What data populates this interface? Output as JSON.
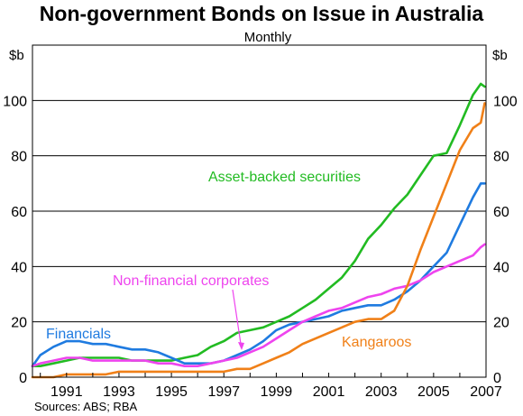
{
  "chart_data": {
    "type": "line",
    "title": "Non-government Bonds on Issue in Australia",
    "subtitle": "Monthly",
    "unit_left": "$b",
    "unit_right": "$b",
    "source": "Sources: ABS; RBA",
    "xlim": [
      1989.7,
      2007.0
    ],
    "ylim": [
      0,
      120
    ],
    "yticks": [
      0,
      20,
      40,
      60,
      80,
      100
    ],
    "xticks": [
      1991,
      1993,
      1995,
      1997,
      1999,
      2001,
      2003,
      2005,
      2007
    ],
    "grid": "horizontal",
    "series": [
      {
        "name": "Asset-backed securities",
        "color": "#22bb22",
        "x": [
          1989.7,
          1990.0,
          1990.5,
          1991.0,
          1991.5,
          1992.0,
          1992.5,
          1993.0,
          1993.5,
          1994.0,
          1994.5,
          1995.0,
          1995.5,
          1996.0,
          1996.5,
          1997.0,
          1997.5,
          1998.0,
          1998.5,
          1999.0,
          1999.5,
          2000.0,
          2000.5,
          2001.0,
          2001.5,
          2002.0,
          2002.5,
          2003.0,
          2003.5,
          2004.0,
          2004.5,
          2005.0,
          2005.5,
          2006.0,
          2006.5,
          2006.8,
          2006.95
        ],
        "values": [
          4,
          4,
          5,
          6,
          7,
          7,
          7,
          7,
          6,
          6,
          6,
          6,
          7,
          8,
          11,
          13,
          16,
          17,
          18,
          20,
          22,
          25,
          28,
          32,
          36,
          42,
          50,
          55,
          61,
          66,
          73,
          80,
          81,
          91,
          102,
          106,
          105
        ]
      },
      {
        "name": "Financials",
        "color": "#1f7be0",
        "x": [
          1989.7,
          1990.0,
          1990.5,
          1991.0,
          1991.5,
          1992.0,
          1992.5,
          1993.0,
          1993.5,
          1994.0,
          1994.5,
          1995.0,
          1995.5,
          1996.0,
          1996.5,
          1997.0,
          1997.5,
          1998.0,
          1998.5,
          1999.0,
          1999.5,
          2000.0,
          2000.5,
          2001.0,
          2001.5,
          2002.0,
          2002.5,
          2003.0,
          2003.5,
          2004.0,
          2004.5,
          2005.0,
          2005.5,
          2006.0,
          2006.5,
          2006.8,
          2006.95
        ],
        "values": [
          4,
          8,
          11,
          13,
          13,
          12,
          12,
          11,
          10,
          10,
          9,
          7,
          5,
          5,
          5,
          6,
          8,
          10,
          13,
          17,
          19,
          20,
          21,
          22,
          24,
          25,
          26,
          26,
          28,
          31,
          35,
          40,
          45,
          55,
          65,
          70,
          70
        ]
      },
      {
        "name": "Non-financial corporates",
        "color": "#ee44ee",
        "x": [
          1989.7,
          1990.0,
          1990.5,
          1991.0,
          1991.5,
          1992.0,
          1992.5,
          1993.0,
          1993.5,
          1994.0,
          1994.5,
          1995.0,
          1995.5,
          1996.0,
          1996.5,
          1997.0,
          1997.5,
          1998.0,
          1998.5,
          1999.0,
          1999.5,
          2000.0,
          2000.5,
          2001.0,
          2001.5,
          2002.0,
          2002.5,
          2003.0,
          2003.5,
          2004.0,
          2004.5,
          2005.0,
          2005.5,
          2006.0,
          2006.5,
          2006.8,
          2006.95
        ],
        "values": [
          4,
          5,
          6,
          7,
          7,
          6,
          6,
          6,
          6,
          6,
          5,
          5,
          4,
          4,
          5,
          6,
          7,
          9,
          11,
          14,
          17,
          20,
          22,
          24,
          25,
          27,
          29,
          30,
          32,
          33,
          35,
          38,
          40,
          42,
          44,
          47,
          48
        ]
      },
      {
        "name": "Kangaroos",
        "color": "#f08018",
        "x": [
          1989.7,
          1990.0,
          1990.5,
          1991.0,
          1991.5,
          1992.0,
          1992.5,
          1993.0,
          1993.5,
          1994.0,
          1994.5,
          1995.0,
          1995.5,
          1996.0,
          1996.5,
          1997.0,
          1997.5,
          1998.0,
          1998.5,
          1999.0,
          1999.5,
          2000.0,
          2000.5,
          2001.0,
          2001.5,
          2002.0,
          2002.5,
          2003.0,
          2003.5,
          2004.0,
          2004.5,
          2005.0,
          2005.5,
          2006.0,
          2006.5,
          2006.8,
          2006.95
        ],
        "values": [
          0,
          0,
          0,
          1,
          1,
          1,
          1,
          2,
          2,
          2,
          2,
          2,
          2,
          2,
          2,
          2,
          3,
          3,
          5,
          7,
          9,
          12,
          14,
          16,
          18,
          20,
          21,
          21,
          24,
          33,
          46,
          58,
          70,
          82,
          90,
          92,
          99
        ]
      }
    ]
  }
}
